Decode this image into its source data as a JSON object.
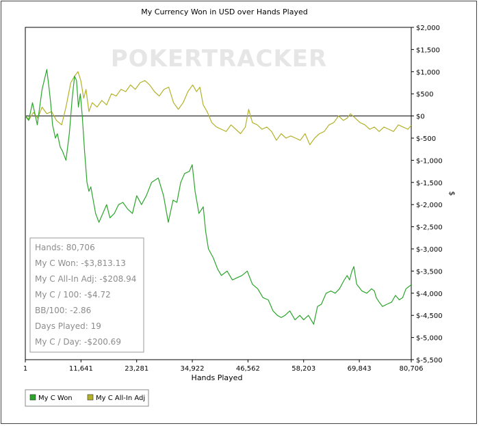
{
  "chart_data": {
    "type": "line",
    "title": "My Currency Won in USD over Hands Played",
    "xlabel": "Hands Played",
    "ylabel": "$",
    "watermark": "POKERTRACKER",
    "xlim": [
      1,
      80706
    ],
    "ylim": [
      -5500,
      2000
    ],
    "x_ticks": [
      1,
      11641,
      23281,
      34922,
      46562,
      58203,
      69843,
      80706
    ],
    "x_tick_labels": [
      "1",
      "11,641",
      "23,281",
      "34,922",
      "46,562",
      "58,203",
      "69,843",
      "80,706"
    ],
    "y_ticks": [
      2000,
      1500,
      1000,
      500,
      0,
      -500,
      -1000,
      -1500,
      -2000,
      -2500,
      -3000,
      -3500,
      -4000,
      -4500,
      -5000,
      -5500
    ],
    "y_tick_labels": [
      "$2,000",
      "$1,500",
      "$1,000",
      "$500",
      "$0",
      "$-500",
      "$-1,000",
      "$-1,500",
      "$-2,000",
      "$-2,500",
      "$-3,000",
      "$-3,500",
      "$-4,000",
      "$-4,500",
      "$-5,000",
      "$-5,500"
    ],
    "stats": [
      "Hands: 80,706",
      "My C Won: -$3,813.13",
      "My C All-In Adj: -$208.94",
      "My C / 100: -$4.72",
      "BB/100: -2.86",
      "Days Played: 19",
      "My C / Day: -$200.69"
    ],
    "legend": [
      "My C Won",
      "My C All-In Adj"
    ],
    "series": [
      {
        "name": "My C Won",
        "color": "#2aa52a",
        "x": [
          1,
          700,
          1500,
          2500,
          3500,
          4500,
          5000,
          5300,
          5700,
          6300,
          6700,
          7300,
          7800,
          8500,
          9200,
          9800,
          10300,
          10700,
          11100,
          11500,
          11900,
          12400,
          12900,
          13300,
          13700,
          14200,
          14700,
          15400,
          16200,
          17000,
          17700,
          18600,
          19500,
          20400,
          21400,
          22400,
          23300,
          24300,
          25300,
          26400,
          27800,
          28900,
          29900,
          30900,
          31700,
          32500,
          33300,
          34300,
          34900,
          35500,
          36300,
          37200,
          37700,
          38300,
          39300,
          40200,
          41000,
          42200,
          43300,
          44300,
          45300,
          46400,
          47500,
          48600,
          49700,
          50800,
          51800,
          52700,
          53500,
          54300,
          55300,
          56400,
          57400,
          58200,
          59200,
          60300,
          61100,
          61900,
          62900,
          63900,
          64800,
          65700,
          66700,
          67300,
          67800,
          68300,
          68700,
          69300,
          70400,
          71400,
          72400,
          73000,
          73400,
          74000,
          74700,
          75600,
          76600,
          77400,
          78200,
          78900,
          79600,
          80200,
          80706
        ],
        "y": [
          0,
          -100,
          300,
          -200,
          600,
          1050,
          600,
          300,
          -200,
          -500,
          -400,
          -700,
          -800,
          -1000,
          -400,
          400,
          900,
          800,
          200,
          500,
          0,
          -800,
          -1500,
          -1700,
          -1600,
          -1900,
          -2200,
          -2400,
          -2200,
          -2000,
          -2300,
          -2200,
          -2000,
          -1950,
          -2100,
          -2200,
          -1800,
          -2000,
          -1800,
          -1500,
          -1400,
          -1800,
          -2400,
          -1900,
          -1950,
          -1500,
          -1300,
          -1250,
          -1100,
          -1700,
          -2200,
          -2050,
          -2600,
          -3000,
          -3200,
          -3450,
          -3600,
          -3500,
          -3700,
          -3650,
          -3600,
          -3500,
          -3800,
          -3900,
          -4100,
          -4150,
          -4400,
          -4500,
          -4550,
          -4500,
          -4400,
          -4600,
          -4500,
          -4600,
          -4500,
          -4700,
          -4300,
          -4250,
          -4000,
          -3950,
          -4000,
          -3900,
          -3700,
          -3600,
          -3700,
          -3500,
          -3400,
          -3800,
          -3950,
          -4000,
          -3900,
          -3950,
          -4100,
          -4200,
          -4300,
          -4250,
          -4200,
          -4050,
          -4150,
          -4100,
          -3900,
          -3850,
          -3810
        ]
      },
      {
        "name": "My C All-In Adj",
        "color": "#b3b12a",
        "x": [
          1,
          800,
          1700,
          2600,
          3500,
          4500,
          5500,
          6500,
          7600,
          8500,
          9500,
          10300,
          11000,
          11600,
          12200,
          12700,
          13300,
          14000,
          15000,
          16000,
          17000,
          18000,
          19000,
          20000,
          21000,
          22000,
          23000,
          24000,
          25000,
          26000,
          27000,
          28000,
          29000,
          30000,
          31000,
          32000,
          33000,
          34000,
          35000,
          35800,
          36500,
          37200,
          38000,
          39000,
          40000,
          41000,
          42000,
          43000,
          44000,
          45000,
          46000,
          46700,
          47500,
          48500,
          49500,
          50500,
          51500,
          52500,
          53500,
          54500,
          55500,
          56500,
          57500,
          58500,
          59500,
          60500,
          61500,
          62500,
          63500,
          64500,
          65500,
          66500,
          67300,
          68000,
          69000,
          70000,
          71000,
          72000,
          73000,
          74000,
          75000,
          76000,
          77000,
          78000,
          79000,
          80000,
          80706
        ],
        "y": [
          0,
          -80,
          80,
          -50,
          200,
          50,
          100,
          -100,
          -200,
          200,
          750,
          900,
          1000,
          800,
          400,
          600,
          100,
          300,
          200,
          350,
          250,
          500,
          450,
          600,
          550,
          700,
          600,
          750,
          800,
          700,
          550,
          450,
          600,
          650,
          300,
          150,
          300,
          550,
          700,
          550,
          650,
          250,
          100,
          -150,
          -250,
          -300,
          -350,
          -200,
          -300,
          -400,
          -250,
          150,
          -150,
          -200,
          -300,
          -250,
          -350,
          -550,
          -400,
          -500,
          -450,
          -500,
          -550,
          -400,
          -650,
          -500,
          -400,
          -350,
          -200,
          -150,
          0,
          -100,
          -50,
          50,
          -50,
          -150,
          -200,
          -300,
          -250,
          -350,
          -250,
          -300,
          -350,
          -200,
          -250,
          -300,
          -210
        ]
      }
    ]
  }
}
